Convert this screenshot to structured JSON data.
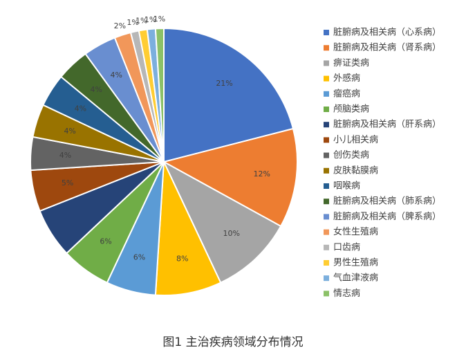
{
  "caption": "图1 主治疾病领域分布情况",
  "chart_data": {
    "type": "pie",
    "title": "",
    "legend_position": "right",
    "slices": [
      {
        "name": "脏腑病及相关病（心系病）",
        "value": 21,
        "label": "21%",
        "color": "#4472C4"
      },
      {
        "name": "脏腑病及相关病（肾系病）",
        "value": 12,
        "label": "12%",
        "color": "#ED7D31"
      },
      {
        "name": "痹证类病",
        "value": 10,
        "label": "10%",
        "color": "#A5A5A5"
      },
      {
        "name": "外感病",
        "value": 8,
        "label": "8%",
        "color": "#FFC000"
      },
      {
        "name": "瘤癌病",
        "value": 6,
        "label": "6%",
        "color": "#5B9BD5"
      },
      {
        "name": "颅脑类病",
        "value": 6,
        "label": "6%",
        "color": "#70AD47"
      },
      {
        "name": "脏腑病及相关病（肝系病）",
        "value": 6,
        "label": "",
        "color": "#264478"
      },
      {
        "name": "小儿相关病",
        "value": 5,
        "label": "5%",
        "color": "#9E480E"
      },
      {
        "name": "创伤类病",
        "value": 4,
        "label": "4%",
        "color": "#636363"
      },
      {
        "name": "皮肤黏膜病",
        "value": 4,
        "label": "4%",
        "color": "#997300"
      },
      {
        "name": "咽喉病",
        "value": 4,
        "label": "4%",
        "color": "#255E91"
      },
      {
        "name": "脏腑病及相关病（肺系病）",
        "value": 4,
        "label": "4%",
        "color": "#43682B"
      },
      {
        "name": "脏腑病及相关病（脾系病）",
        "value": 4,
        "label": "4%",
        "color": "#698ED0"
      },
      {
        "name": "女性生殖病",
        "value": 2,
        "label": "2%",
        "color": "#F1975A"
      },
      {
        "name": "口齿病",
        "value": 1,
        "label": "1%",
        "color": "#B7B7B7"
      },
      {
        "name": "男性生殖病",
        "value": 1,
        "label": "1%",
        "color": "#FFCD33"
      },
      {
        "name": "气血津液病",
        "value": 1,
        "label": "1%",
        "color": "#7CAFDD"
      },
      {
        "name": "情志病",
        "value": 1,
        "label": "1%",
        "color": "#8CC168"
      }
    ]
  }
}
